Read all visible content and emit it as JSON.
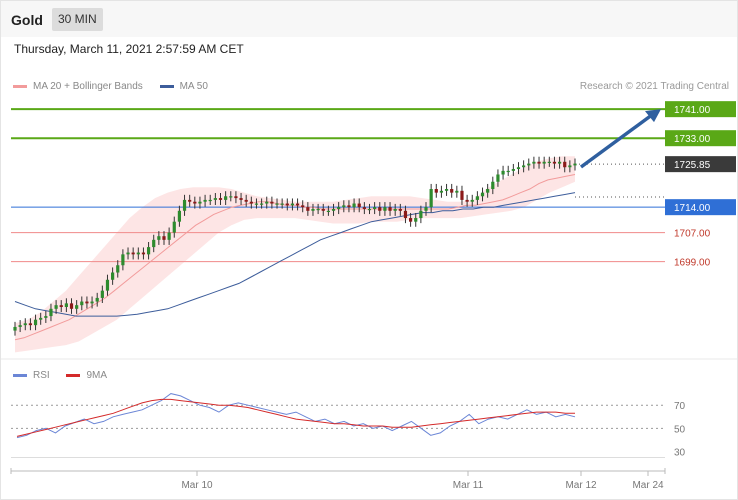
{
  "header": {
    "title": "Gold",
    "timeframe": "30 MIN"
  },
  "timestamp": "Thursday, March 11, 2021 2:57:59 AM CET",
  "legend": {
    "items": [
      {
        "label": "MA 20 + Bollinger Bands",
        "color": "#f29b9b"
      },
      {
        "label": "MA 50",
        "color": "#3d5d9b"
      }
    ],
    "credit": "Research © 2021 Trading Central"
  },
  "rsi_legend": {
    "items": [
      {
        "label": "RSI",
        "color": "#6b86d6"
      },
      {
        "label": "9MA",
        "color": "#d42a2a"
      }
    ]
  },
  "colors": {
    "up": "#2e8b2e",
    "down": "#8b1a1a",
    "resistance": "#5aa817",
    "support_line": "#f08a8a",
    "pivot": "#2f6fd6",
    "current": "#3a3a3a",
    "arrow": "#2f5f9f",
    "bands": "#fde0e0"
  },
  "chart_data": [
    {
      "type": "candlestick",
      "ylim": [
        1673,
        1746
      ],
      "x_ticks": [
        "Mar 10",
        "Mar 11",
        "Mar 12",
        "Mar 24"
      ],
      "levels": [
        {
          "label": "1741.00",
          "value": 1741.0,
          "kind": "resistance"
        },
        {
          "label": "1733.00",
          "value": 1733.0,
          "kind": "resistance"
        },
        {
          "label": "1725.85",
          "value": 1725.85,
          "kind": "current"
        },
        {
          "label": "1714.00",
          "value": 1714.0,
          "kind": "pivot"
        },
        {
          "label": "1707.00",
          "value": 1707.0,
          "kind": "support"
        },
        {
          "label": "1699.00",
          "value": 1699.0,
          "kind": "support"
        }
      ],
      "close_series": [
        1681,
        1681.5,
        1682,
        1681.5,
        1683,
        1683.5,
        1684,
        1686,
        1687,
        1686.5,
        1687.5,
        1686,
        1687,
        1688,
        1687.5,
        1688,
        1689,
        1691,
        1694,
        1696,
        1698,
        1701,
        1701.5,
        1701,
        1701.5,
        1701,
        1703,
        1705,
        1706,
        1705,
        1707,
        1710,
        1713,
        1716,
        1715.5,
        1715,
        1715.5,
        1716,
        1716,
        1716.5,
        1716,
        1717,
        1717,
        1716.5,
        1716,
        1715.5,
        1715,
        1715,
        1715,
        1715.5,
        1715,
        1715,
        1715,
        1714.5,
        1715,
        1714.5,
        1714,
        1713,
        1713.5,
        1713.5,
        1713,
        1713,
        1713.5,
        1714,
        1714.5,
        1714,
        1715,
        1714,
        1713.5,
        1713.5,
        1714,
        1713,
        1714,
        1713,
        1713.5,
        1713,
        1711,
        1710,
        1711,
        1713,
        1714,
        1719,
        1718,
        1718.5,
        1719,
        1718,
        1718.5,
        1716,
        1715.5,
        1716,
        1717,
        1718,
        1719,
        1721,
        1723,
        1724,
        1724,
        1724.5,
        1725,
        1725.5,
        1726,
        1726.5,
        1726,
        1726.5,
        1726.5,
        1726,
        1726.5,
        1725,
        1725.5,
        1726
      ],
      "ma20": [
        1677.5,
        1678,
        1679,
        1680,
        1681,
        1682,
        1683,
        1684.5,
        1686,
        1687.5,
        1689,
        1691,
        1693,
        1695,
        1697,
        1699,
        1701,
        1703,
        1705,
        1707,
        1709,
        1710.5,
        1712,
        1713,
        1714,
        1714.5,
        1715,
        1715.5,
        1715.5,
        1715,
        1714.5,
        1714.5,
        1714,
        1714,
        1713.5,
        1713.5,
        1713.5,
        1713.5,
        1713.5,
        1713.5,
        1713.5,
        1713.5,
        1713.5,
        1713.5,
        1713.5,
        1713.5,
        1713.5,
        1713.5,
        1713.5,
        1714,
        1714.5,
        1714.5,
        1715,
        1715.5,
        1716,
        1717,
        1718,
        1719,
        1720.5,
        1721.5,
        1722,
        1722.5,
        1723
      ],
      "ma50": [
        1688,
        1687,
        1686,
        1685.5,
        1685,
        1684.5,
        1684,
        1684,
        1684,
        1684,
        1684,
        1684.2,
        1684.5,
        1685,
        1685.5,
        1686,
        1687,
        1688,
        1689,
        1690,
        1691,
        1692,
        1693,
        1694.5,
        1696,
        1697.5,
        1699,
        1700.5,
        1702,
        1703.5,
        1705,
        1706,
        1707,
        1708,
        1709,
        1710,
        1710.5,
        1711,
        1711.5,
        1712,
        1712.5,
        1712.5,
        1713,
        1713,
        1713.5,
        1713.5,
        1714,
        1714,
        1714.5,
        1715,
        1715.5,
        1716,
        1716.5,
        1717,
        1717.5,
        1718
      ],
      "bb_upper": [
        1682,
        1683,
        1685,
        1688,
        1691,
        1695,
        1699,
        1703,
        1707,
        1711,
        1714,
        1716.5,
        1718,
        1719,
        1719.5,
        1719.5,
        1719.5,
        1719,
        1718,
        1717,
        1716.5,
        1716,
        1715.5,
        1715.5,
        1715.5,
        1715.5,
        1716,
        1716.5,
        1717,
        1717,
        1717,
        1717,
        1716.5,
        1716,
        1715.5,
        1715.5,
        1716,
        1719,
        1721,
        1723,
        1725,
        1726.5,
        1727.5,
        1728,
        1728
      ],
      "bb_lower": [
        1674,
        1674.5,
        1675,
        1675.5,
        1676,
        1677,
        1679,
        1681,
        1683,
        1686,
        1689,
        1692,
        1695,
        1698,
        1701,
        1704,
        1707,
        1709,
        1710.5,
        1711,
        1711,
        1711,
        1711,
        1710.5,
        1710,
        1709.5,
        1709.5,
        1709.5,
        1710,
        1710,
        1710,
        1710.5,
        1711,
        1711,
        1711,
        1711,
        1711.5,
        1712,
        1712.5,
        1713,
        1714,
        1716,
        1718,
        1719.5,
        1721
      ]
    },
    {
      "type": "line",
      "name": "RSI",
      "ylim": [
        20,
        84
      ],
      "y_ticks": [
        70,
        50,
        30
      ],
      "x_ticks": [
        "Mar 10",
        "Mar 11",
        "Mar 12",
        "Mar 24"
      ],
      "series": [
        {
          "name": "RSI",
          "values": [
            42,
            44,
            48,
            50,
            46,
            52,
            55,
            58,
            54,
            56,
            60,
            62,
            64,
            66,
            70,
            74,
            80,
            78,
            74,
            70,
            68,
            64,
            70,
            72,
            70,
            68,
            66,
            64,
            62,
            64,
            60,
            56,
            58,
            54,
            56,
            52,
            54,
            50,
            52,
            48,
            52,
            56,
            50,
            44,
            46,
            52,
            56,
            62,
            54,
            58,
            60,
            58,
            62,
            66,
            62,
            64,
            60,
            62,
            60
          ]
        },
        {
          "name": "9MA",
          "values": [
            43,
            45,
            47,
            49,
            51,
            53,
            55,
            57,
            59,
            61,
            63,
            66,
            69,
            72,
            74,
            75,
            75,
            74,
            73,
            72,
            71,
            70,
            70,
            69,
            68,
            66,
            64,
            62,
            60,
            58,
            57,
            56,
            55,
            54,
            54,
            53,
            52,
            52,
            52,
            51,
            51,
            51,
            52,
            53,
            54,
            55,
            56,
            57,
            58,
            59,
            60,
            61,
            62,
            63,
            64,
            64,
            64,
            63,
            63
          ]
        }
      ]
    }
  ]
}
